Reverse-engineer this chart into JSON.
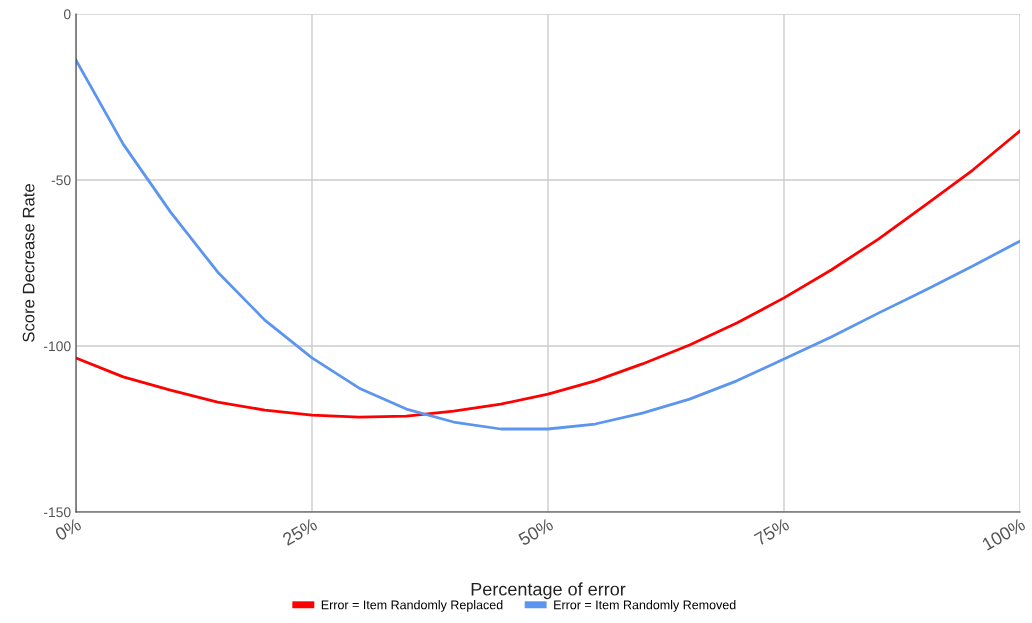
{
  "chart_data": {
    "type": "line",
    "xlabel": "Percentage of error",
    "ylabel": "Score Decrease Rate",
    "x": [
      0,
      5,
      10,
      15,
      20,
      25,
      30,
      35,
      40,
      45,
      50,
      55,
      60,
      65,
      70,
      75,
      80,
      85,
      90,
      95,
      100
    ],
    "series": [
      {
        "name": "Error = Item Randomly Replaced",
        "color": "#ff0000",
        "values": [
          -103.6,
          -109.3,
          -113.3,
          -116.9,
          -119.3,
          -120.8,
          -121.4,
          -121.1,
          -119.6,
          -117.5,
          -114.5,
          -110.5,
          -105.4,
          -99.7,
          -93.1,
          -85.5,
          -77.1,
          -67.8,
          -57.5,
          -47,
          -35.2
        ]
      },
      {
        "name": "Error = Item Randomly Removed",
        "color": "#5b95f0",
        "values": [
          -13.9,
          -39.2,
          -59.6,
          -77.7,
          -92.2,
          -103.6,
          -112.7,
          -119,
          -122.9,
          -125,
          -125,
          -123.5,
          -120.2,
          -116,
          -110.5,
          -103.9,
          -97.3,
          -90.1,
          -83.1,
          -75.9,
          -68.4
        ]
      }
    ],
    "xlim": [
      0,
      100
    ],
    "xticks": [
      {
        "value": 0,
        "label": "0%"
      },
      {
        "value": 25,
        "label": "25%"
      },
      {
        "value": 50,
        "label": "50%"
      },
      {
        "value": 75,
        "label": "75%"
      },
      {
        "value": 100,
        "label": "100%"
      }
    ],
    "ylim": [
      -150,
      0
    ],
    "yticks": [
      -150,
      -100,
      -50,
      0
    ],
    "grid": true,
    "legend": "bottom",
    "marker": "none",
    "line_style": "solid"
  }
}
